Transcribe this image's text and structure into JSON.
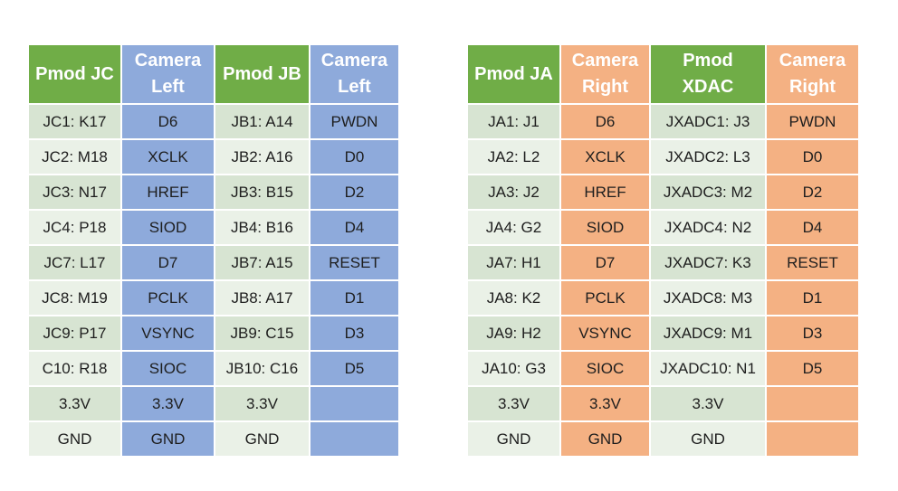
{
  "left_table": {
    "headers": [
      "Pmod JC",
      "Camera\nLeft",
      "Pmod JB",
      "Camera\nLeft"
    ],
    "column_kinds": [
      "pmod",
      "cam-left",
      "pmod",
      "cam-left"
    ],
    "rows": [
      [
        "JC1: K17",
        "D6",
        "JB1: A14",
        "PWDN"
      ],
      [
        "JC2: M18",
        "XCLK",
        "JB2: A16",
        "D0"
      ],
      [
        "JC3: N17",
        "HREF",
        "JB3: B15",
        "D2"
      ],
      [
        "JC4: P18",
        "SIOD",
        "JB4: B16",
        "D4"
      ],
      [
        "JC7: L17",
        "D7",
        "JB7: A15",
        "RESET"
      ],
      [
        "JC8: M19",
        "PCLK",
        "JB8: A17",
        "D1"
      ],
      [
        "JC9: P17",
        "VSYNC",
        "JB9: C15",
        "D3"
      ],
      [
        "C10: R18",
        "SIOC",
        "JB10: C16",
        "D5"
      ],
      [
        "3.3V",
        "3.3V",
        "3.3V",
        ""
      ],
      [
        "GND",
        "GND",
        "GND",
        ""
      ]
    ]
  },
  "right_table": {
    "headers": [
      "Pmod JA",
      "Camera\nRight",
      "Pmod\nXDAC",
      "Camera\nRight"
    ],
    "column_kinds": [
      "pmod",
      "cam-right",
      "pmod",
      "cam-right"
    ],
    "rows": [
      [
        "JA1: J1",
        "D6",
        "JXADC1: J3",
        "PWDN"
      ],
      [
        "JA2: L2",
        "XCLK",
        "JXADC2: L3",
        "D0"
      ],
      [
        "JA3: J2",
        "HREF",
        "JXADC3: M2",
        "D2"
      ],
      [
        "JA4: G2",
        "SIOD",
        "JXADC4: N2",
        "D4"
      ],
      [
        "JA7: H1",
        "D7",
        "JXADC7: K3",
        "RESET"
      ],
      [
        "JA8: K2",
        "PCLK",
        "JXADC8: M3",
        "D1"
      ],
      [
        "JA9: H2",
        "VSYNC",
        "JXADC9: M1",
        "D3"
      ],
      [
        "JA10: G3",
        "SIOC",
        "JXADC10: N1",
        "D5"
      ],
      [
        "3.3V",
        "3.3V",
        "3.3V",
        ""
      ],
      [
        "GND",
        "GND",
        "GND",
        ""
      ]
    ]
  },
  "colors": {
    "pmod_header": "#70ad47",
    "pmod_cell_dark": "#d7e4d2",
    "pmod_cell_light": "#eaf1e7",
    "camera_left": "#8eaadb",
    "camera_right": "#f4b183"
  }
}
